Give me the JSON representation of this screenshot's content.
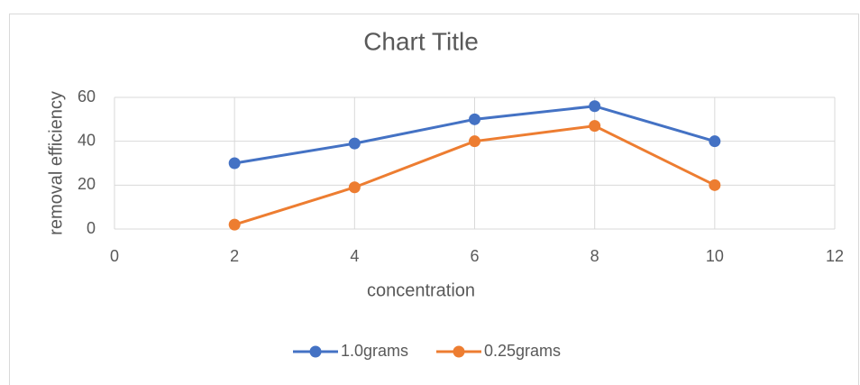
{
  "chart_data": {
    "type": "line",
    "title": "Chart Title",
    "x_label": "concentration",
    "y_label": "removal efficiency",
    "x": [
      2,
      4,
      6,
      8,
      10
    ],
    "series": [
      {
        "name": "1.0grams",
        "color": "#4472c4",
        "values": [
          30,
          39,
          50,
          56,
          40
        ]
      },
      {
        "name": "0.25grams",
        "color": "#ed7d31",
        "values": [
          2,
          19,
          40,
          47,
          20
        ]
      }
    ],
    "xlim": [
      0,
      12
    ],
    "xticks": [
      0,
      2,
      4,
      6,
      8,
      10,
      12
    ],
    "ylim": [
      0,
      60
    ],
    "yticks": [
      0,
      20,
      40,
      60
    ],
    "grid": true,
    "legend": "bottom"
  }
}
